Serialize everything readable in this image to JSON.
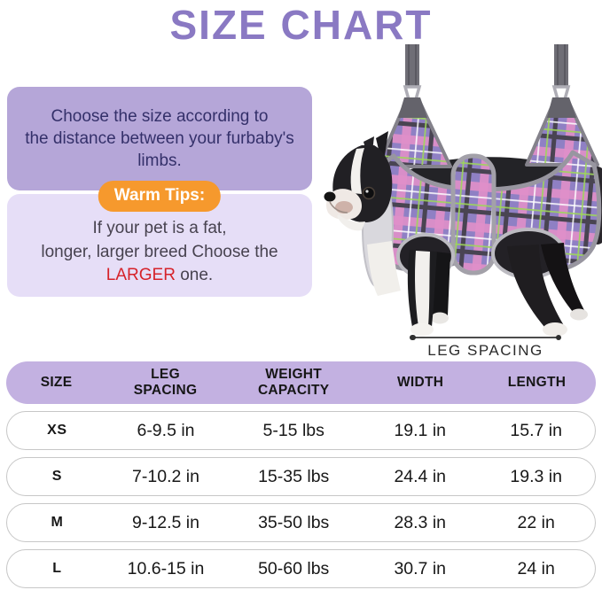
{
  "title": "SIZE CHART",
  "info": {
    "choose_text": "Choose the size according to\nthe distance between your furbaby's\nlimbs.",
    "warm_tips_label": "Warm Tips:",
    "tip_line1": "If your pet is a fat,",
    "tip_line2": "longer, larger breed Choose the",
    "tip_highlight": "LARGER",
    "tip_suffix": " one."
  },
  "figure": {
    "measure_label": "LEG SPACING"
  },
  "table": {
    "headers": [
      "SIZE",
      "LEG\nSPACING",
      "WEIGHT\nCAPACITY",
      "WIDTH",
      "LENGTH"
    ],
    "rows": [
      [
        "XS",
        "6-9.5 in",
        "5-15 lbs",
        "19.1 in",
        "15.7 in"
      ],
      [
        "S",
        "7-10.2 in",
        "15-35 lbs",
        "24.4 in",
        "19.3 in"
      ],
      [
        "M",
        "9-12.5 in",
        "35-50 lbs",
        "28.3 in",
        "22 in"
      ],
      [
        "L",
        "10.6-15 in",
        "50-60 lbs",
        "30.7 in",
        "24 in"
      ]
    ]
  },
  "colors": {
    "title_purple": "#8a79c3",
    "box_dark_lavender": "#b5a6d8",
    "box_dark_text": "#34306a",
    "box_light_lavender": "#e6def7",
    "box_light_text": "#47424f",
    "warm_tips_orange": "#f6992d",
    "highlight_red": "#d6222a",
    "table_header_purple": "#c3b1e1",
    "plaid_purple": "#8f80c4",
    "plaid_pink": "#e08fc9",
    "strap_gray": "#6f6e76"
  }
}
